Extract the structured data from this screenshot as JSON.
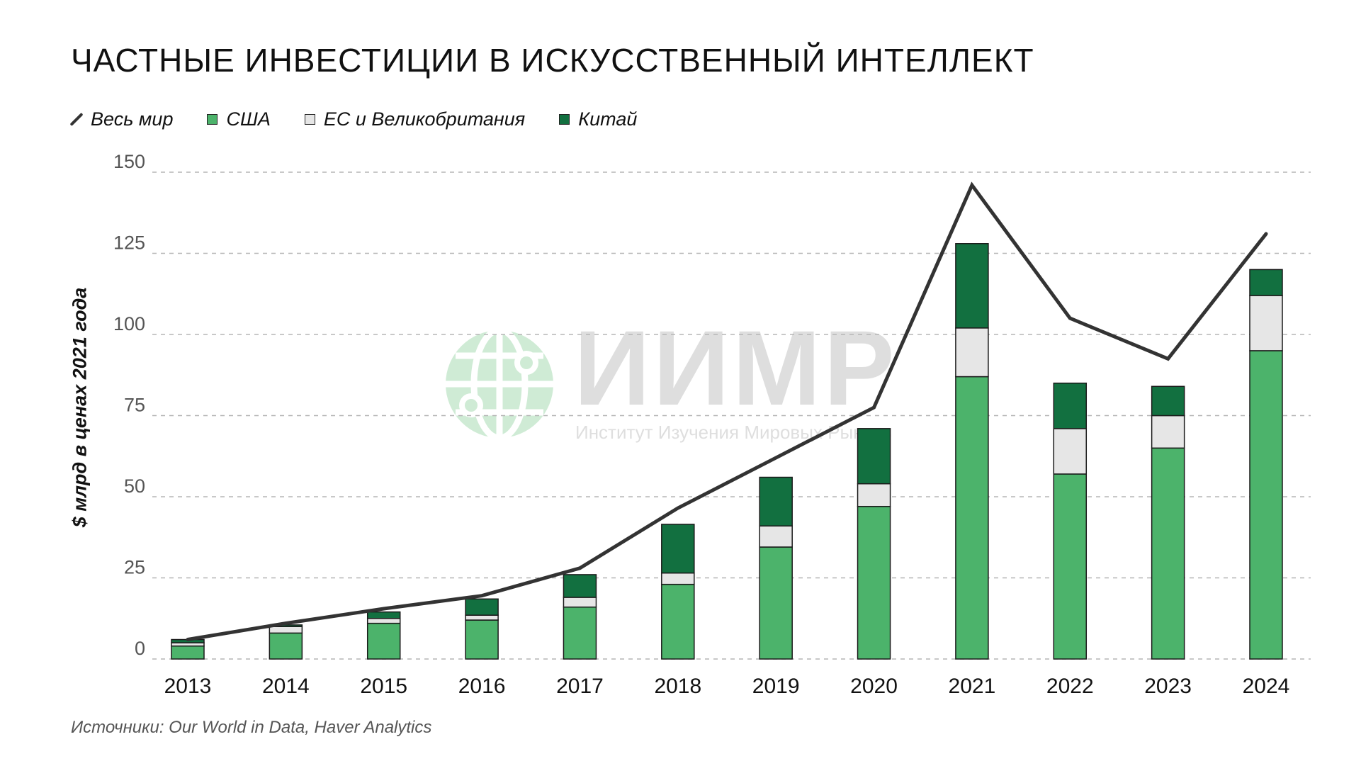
{
  "title": "Частные инвестиции в искусственный интеллект",
  "source": "Источники: Our World in Data, Haver Analytics",
  "watermark": {
    "brand": "ИИМР",
    "subtitle": "Институт Изучения Мировых Рынков"
  },
  "colors": {
    "us": "#4cb36b",
    "eu_uk": "#e6e6e6",
    "china": "#127040",
    "world": "#333333",
    "grid": "#b5b5b5"
  },
  "chart_data": {
    "type": "bar",
    "stacked": true,
    "categories": [
      "2013",
      "2014",
      "2015",
      "2016",
      "2017",
      "2018",
      "2019",
      "2020",
      "2021",
      "2022",
      "2023",
      "2024"
    ],
    "series": [
      {
        "name": "США",
        "values": [
          4,
          8,
          11,
          12,
          16,
          23,
          34.5,
          47,
          87,
          57,
          65,
          95
        ]
      },
      {
        "name": "ЕС и Великобритания",
        "values": [
          1,
          2,
          1.5,
          1.5,
          3,
          3.5,
          6.5,
          7,
          15,
          14,
          10,
          17
        ]
      },
      {
        "name": "Китай",
        "values": [
          1,
          0.5,
          2,
          5,
          7,
          15,
          15,
          17,
          26,
          14,
          9,
          8
        ]
      }
    ],
    "line_series": {
      "name": "Весь мир",
      "values": [
        6,
        11,
        15.5,
        19.5,
        28,
        46.5,
        62,
        77.5,
        146,
        105,
        92.5,
        131
      ]
    },
    "ylabel": "$ млрд в ценах 2021 года",
    "xlabel": "",
    "ylim": [
      0,
      150
    ],
    "yticks": [
      "0",
      "25",
      "50",
      "75",
      "100",
      "125",
      "150"
    ],
    "grid": "horizontal-dashed",
    "legend_position": "top-left",
    "legend_order": [
      "Весь мир",
      "США",
      "ЕС и Великобритания",
      "Китай"
    ]
  }
}
